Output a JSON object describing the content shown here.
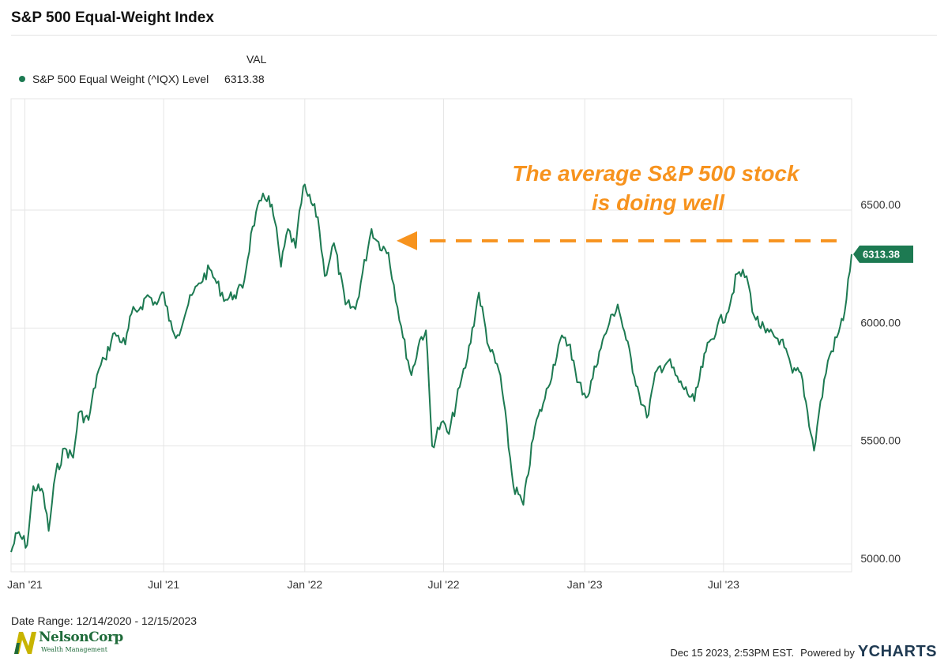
{
  "title": "S&P 500 Equal-Weight Index",
  "legend": {
    "header": "VAL",
    "series_label": "S&P 500 Equal Weight (^IQX) Level",
    "series_value": "6313.38"
  },
  "annotation": {
    "line1": "The average S&P 500 stock",
    "line2": "is doing well"
  },
  "date_range": "Date Range: 12/14/2020 - 12/15/2023",
  "footer": {
    "timestamp": "Dec 15 2023, 2:53PM EST.",
    "powered_by": "Powered by",
    "brand": "YCHARTS"
  },
  "logo": {
    "name": "NelsonCorp",
    "subtitle": "Wealth Management"
  },
  "colors": {
    "series": "#1d7a52",
    "annotation": "#f7931e",
    "grid": "#e6e6e6",
    "logo": "#1f6b3a",
    "logo_accent": "#c8b400"
  },
  "chart_data": {
    "type": "line",
    "title": "S&P 500 Equal-Weight Index",
    "x_range": [
      "2020-12-14",
      "2023-12-15"
    ],
    "ylim": [
      5000,
      6900
    ],
    "y_ticks": [
      {
        "value": 5000,
        "label": "5000.00"
      },
      {
        "value": 5500,
        "label": "5500.00"
      },
      {
        "value": 6000,
        "label": "6000.00"
      },
      {
        "value": 6500,
        "label": "6500.00"
      }
    ],
    "x_ticks": [
      {
        "date": "2021-01-01",
        "label": "Jan '21"
      },
      {
        "date": "2021-07-01",
        "label": "Jul '21"
      },
      {
        "date": "2022-01-01",
        "label": "Jan '22"
      },
      {
        "date": "2022-07-01",
        "label": "Jul '22"
      },
      {
        "date": "2023-01-01",
        "label": "Jan '23"
      },
      {
        "date": "2023-07-01",
        "label": "Jul '23"
      }
    ],
    "grid": true,
    "legend_position": "top-left",
    "last_value_label": "6313.38",
    "reference_level": 6370,
    "series": [
      {
        "name": "S&P 500 Equal Weight (^IQX) Level",
        "points": [
          [
            "2020-12-14",
            5050
          ],
          [
            "2020-12-22",
            5130
          ],
          [
            "2021-01-04",
            5080
          ],
          [
            "2021-01-12",
            5330
          ],
          [
            "2021-01-25",
            5300
          ],
          [
            "2021-02-01",
            5140
          ],
          [
            "2021-02-10",
            5380
          ],
          [
            "2021-02-22",
            5490
          ],
          [
            "2021-03-05",
            5450
          ],
          [
            "2021-03-12",
            5640
          ],
          [
            "2021-03-25",
            5610
          ],
          [
            "2021-04-05",
            5800
          ],
          [
            "2021-04-15",
            5870
          ],
          [
            "2021-04-28",
            5980
          ],
          [
            "2021-05-12",
            5930
          ],
          [
            "2021-05-20",
            6060
          ],
          [
            "2021-06-01",
            6090
          ],
          [
            "2021-06-10",
            6140
          ],
          [
            "2021-06-22",
            6100
          ],
          [
            "2021-07-01",
            6150
          ],
          [
            "2021-07-08",
            6030
          ],
          [
            "2021-07-19",
            5970
          ],
          [
            "2021-08-02",
            6100
          ],
          [
            "2021-08-16",
            6190
          ],
          [
            "2021-08-30",
            6250
          ],
          [
            "2021-09-08",
            6190
          ],
          [
            "2021-09-20",
            6120
          ],
          [
            "2021-10-01",
            6140
          ],
          [
            "2021-10-12",
            6170
          ],
          [
            "2021-10-25",
            6430
          ],
          [
            "2021-11-05",
            6540
          ],
          [
            "2021-11-15",
            6560
          ],
          [
            "2021-11-23",
            6450
          ],
          [
            "2021-12-01",
            6260
          ],
          [
            "2021-12-10",
            6420
          ],
          [
            "2021-12-20",
            6340
          ],
          [
            "2021-12-30",
            6600
          ],
          [
            "2022-01-05",
            6560
          ],
          [
            "2022-01-18",
            6470
          ],
          [
            "2022-01-27",
            6220
          ],
          [
            "2022-02-08",
            6360
          ],
          [
            "2022-02-23",
            6100
          ],
          [
            "2022-03-08",
            6080
          ],
          [
            "2022-03-29",
            6420
          ],
          [
            "2022-04-05",
            6370
          ],
          [
            "2022-04-20",
            6320
          ],
          [
            "2022-05-09",
            5960
          ],
          [
            "2022-05-20",
            5800
          ],
          [
            "2022-05-31",
            5950
          ],
          [
            "2022-06-08",
            5990
          ],
          [
            "2022-06-16",
            5500
          ],
          [
            "2022-06-28",
            5600
          ],
          [
            "2022-07-08",
            5550
          ],
          [
            "2022-07-22",
            5750
          ],
          [
            "2022-08-01",
            5870
          ],
          [
            "2022-08-16",
            6150
          ],
          [
            "2022-08-29",
            5920
          ],
          [
            "2022-09-13",
            5800
          ],
          [
            "2022-09-30",
            5330
          ],
          [
            "2022-10-13",
            5250
          ],
          [
            "2022-10-28",
            5580
          ],
          [
            "2022-11-10",
            5700
          ],
          [
            "2022-11-30",
            5950
          ],
          [
            "2022-12-13",
            5930
          ],
          [
            "2022-12-22",
            5770
          ],
          [
            "2023-01-05",
            5710
          ],
          [
            "2023-01-20",
            5900
          ],
          [
            "2023-02-02",
            6020
          ],
          [
            "2023-02-13",
            6100
          ],
          [
            "2023-02-24",
            5950
          ],
          [
            "2023-03-13",
            5720
          ],
          [
            "2023-03-23",
            5620
          ],
          [
            "2023-04-05",
            5820
          ],
          [
            "2023-04-20",
            5860
          ],
          [
            "2023-05-04",
            5770
          ],
          [
            "2023-05-24",
            5690
          ],
          [
            "2023-06-08",
            5900
          ],
          [
            "2023-06-23",
            6010
          ],
          [
            "2023-07-05",
            6060
          ],
          [
            "2023-07-19",
            6230
          ],
          [
            "2023-07-31",
            6220
          ],
          [
            "2023-08-10",
            6050
          ],
          [
            "2023-08-25",
            5980
          ],
          [
            "2023-09-14",
            5950
          ],
          [
            "2023-09-29",
            5810
          ],
          [
            "2023-10-10",
            5810
          ],
          [
            "2023-10-27",
            5480
          ],
          [
            "2023-11-02",
            5630
          ],
          [
            "2023-11-14",
            5860
          ],
          [
            "2023-11-28",
            5980
          ],
          [
            "2023-12-06",
            6070
          ],
          [
            "2023-12-15",
            6313
          ]
        ]
      }
    ]
  }
}
